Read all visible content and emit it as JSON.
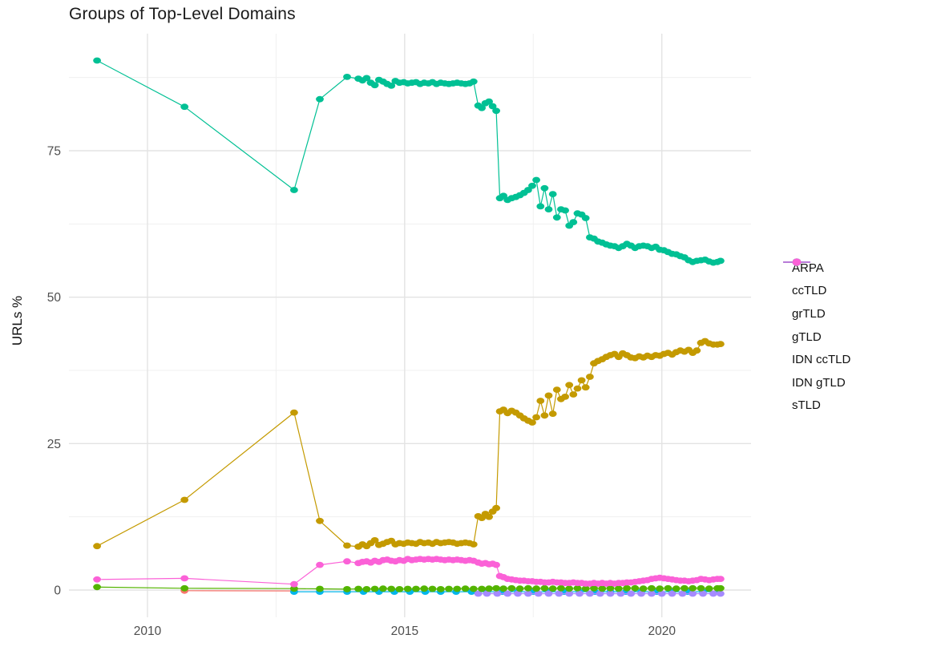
{
  "figure": {
    "title": "Groups of Top-Level Domains",
    "y_axis_label": "URLs %"
  },
  "chart_data": {
    "type": "line",
    "title": "Groups of Top-Level Domains",
    "xlabel": "",
    "ylabel": "URLs %",
    "x_ticks": [
      "2010",
      "2015",
      "2020"
    ],
    "x_tick_values": [
      2010,
      2015,
      2020
    ],
    "y_ticks": [
      "0",
      "25",
      "50",
      "75"
    ],
    "y_tick_values": [
      0,
      25,
      50,
      75
    ],
    "x_minor_gridlines": [
      2012.5,
      2017.5
    ],
    "y_minor_gridlines": [
      12.5,
      37.5,
      62.5,
      87.5
    ],
    "xlim": [
      2008.4,
      2021.75
    ],
    "ylim": [
      -4.7,
      95.2
    ],
    "grid": true,
    "legend_position": "right",
    "x_main": [
      2009.02,
      2010.72,
      2012.85,
      2013.35,
      2013.88,
      2014.1,
      2014.18,
      2014.26,
      2014.34,
      2014.42,
      2014.5,
      2014.58,
      2014.66,
      2014.74,
      2014.82,
      2014.9,
      2014.98,
      2015.06,
      2015.14,
      2015.22,
      2015.3,
      2015.38,
      2015.46,
      2015.54,
      2015.62,
      2015.7,
      2015.78,
      2015.86,
      2015.94,
      2016.02,
      2016.1,
      2016.18,
      2016.26,
      2016.34,
      2016.43,
      2016.5,
      2016.57,
      2016.64,
      2016.71,
      2016.78,
      2016.85,
      2016.92,
      2017.0,
      2017.08,
      2017.16,
      2017.24,
      2017.32,
      2017.4,
      2017.48,
      2017.56,
      2017.64,
      2017.72,
      2017.8,
      2017.88,
      2017.96,
      2018.04,
      2018.12,
      2018.2,
      2018.28,
      2018.36,
      2018.44,
      2018.52,
      2018.6,
      2018.68,
      2018.76,
      2018.84,
      2018.92,
      2019.0,
      2019.08,
      2019.16,
      2019.24,
      2019.32,
      2019.4,
      2019.48,
      2019.56,
      2019.64,
      2019.72,
      2019.8,
      2019.88,
      2019.96,
      2020.04,
      2020.12,
      2020.2,
      2020.28,
      2020.36,
      2020.44,
      2020.52,
      2020.6,
      2020.68,
      2020.76,
      2020.84,
      2020.92,
      2021.0,
      2021.08,
      2021.14
    ],
    "series": [
      {
        "name": "ARPA",
        "color": "#F8766D",
        "x": [
          2010.72,
          2012.85
        ],
        "y": [
          0.1,
          0.05
        ]
      },
      {
        "name": "ccTLD",
        "color": "#C49A00",
        "x_ref": "x_main",
        "y": [
          7.5,
          15.4,
          30.3,
          11.8,
          7.6,
          7.4,
          7.8,
          7.5,
          8.0,
          8.5,
          7.7,
          7.9,
          8.2,
          8.4,
          7.8,
          8.0,
          7.9,
          8.1,
          8.0,
          7.9,
          8.2,
          8.0,
          8.1,
          7.9,
          8.2,
          8.0,
          8.1,
          8.2,
          8.1,
          7.9,
          8.0,
          8.1,
          8.0,
          7.8,
          12.6,
          12.3,
          13.0,
          12.5,
          13.4,
          14.0,
          30.5,
          30.8,
          30.2,
          30.6,
          30.3,
          29.8,
          29.3,
          28.9,
          28.6,
          29.5,
          32.3,
          29.8,
          33.2,
          30.1,
          34.2,
          32.6,
          33.0,
          35.0,
          33.4,
          34.4,
          35.8,
          34.6,
          36.4,
          38.7,
          39.1,
          39.4,
          39.8,
          40.1,
          40.3,
          39.8,
          40.4,
          40.1,
          39.7,
          39.6,
          39.9,
          39.7,
          40.0,
          39.8,
          40.1,
          40.0,
          40.3,
          40.5,
          40.2,
          40.6,
          40.9,
          40.7,
          41.0,
          40.5,
          40.9,
          42.2,
          42.5,
          42.1,
          41.9,
          41.9,
          42.0
        ]
      },
      {
        "name": "grTLD",
        "color": "#53B400",
        "x": [
          2009.02,
          2010.72,
          2012.85,
          2013.35,
          2013.88,
          2014.1,
          2014.26,
          2014.42,
          2014.58,
          2014.74,
          2014.9,
          2015.06,
          2015.22,
          2015.38,
          2015.54,
          2015.7,
          2015.86,
          2016.02,
          2016.18,
          2016.34,
          2016.5,
          2016.64,
          2016.78,
          2016.92,
          2017.08,
          2017.24,
          2017.4,
          2017.56,
          2017.72,
          2017.88,
          2018.04,
          2018.2,
          2018.36,
          2018.52,
          2018.68,
          2018.84,
          2019.0,
          2019.16,
          2019.32,
          2019.48,
          2019.64,
          2019.8,
          2019.96,
          2020.12,
          2020.28,
          2020.44,
          2020.6,
          2020.76,
          2020.92,
          2021.08,
          2021.14
        ],
        "y": [
          0.5,
          0.3,
          0.25,
          0.2,
          0.15,
          0.2,
          0.15,
          0.2,
          0.25,
          0.2,
          0.15,
          0.2,
          0.2,
          0.25,
          0.2,
          0.15,
          0.2,
          0.2,
          0.25,
          0.2,
          0.2,
          0.25,
          0.3,
          0.25,
          0.3,
          0.25,
          0.3,
          0.25,
          0.3,
          0.25,
          0.3,
          0.25,
          0.3,
          0.25,
          0.3,
          0.25,
          0.3,
          0.25,
          0.3,
          0.3,
          0.25,
          0.3,
          0.25,
          0.3,
          0.25,
          0.3,
          0.3,
          0.3,
          0.25,
          0.3,
          0.3
        ]
      },
      {
        "name": "gTLD",
        "color": "#00C094",
        "x_ref": "x_main",
        "y": [
          90.4,
          82.5,
          68.3,
          83.8,
          87.6,
          87.3,
          87.0,
          87.4,
          86.6,
          86.2,
          87.1,
          86.8,
          86.4,
          86.1,
          86.9,
          86.6,
          86.7,
          86.5,
          86.6,
          86.7,
          86.4,
          86.6,
          86.5,
          86.7,
          86.4,
          86.6,
          86.5,
          86.4,
          86.5,
          86.6,
          86.5,
          86.4,
          86.5,
          86.8,
          82.7,
          82.3,
          83.1,
          83.4,
          82.6,
          81.8,
          66.9,
          67.3,
          66.6,
          66.9,
          67.1,
          67.4,
          67.8,
          68.3,
          69.0,
          70.0,
          65.5,
          68.6,
          65.0,
          67.6,
          63.6,
          65.0,
          64.8,
          62.2,
          62.8,
          64.3,
          64.1,
          63.5,
          60.2,
          60.0,
          59.5,
          59.3,
          59.0,
          58.8,
          58.7,
          58.4,
          58.7,
          59.1,
          58.8,
          58.4,
          58.7,
          58.8,
          58.7,
          58.4,
          58.6,
          58.1,
          58.0,
          57.7,
          57.4,
          57.3,
          57.0,
          56.8,
          56.3,
          56.0,
          56.2,
          56.3,
          56.4,
          56.1,
          55.9,
          56.0,
          56.2
        ]
      },
      {
        "name": "IDN ccTLD",
        "color": "#00B6EB",
        "x": [
          2012.85,
          2013.35,
          2013.88,
          2014.2,
          2014.5,
          2014.8,
          2015.1,
          2015.4,
          2015.7,
          2016.0,
          2016.3,
          2016.6,
          2016.9,
          2017.2,
          2017.5,
          2017.8,
          2018.1,
          2018.4,
          2018.7,
          2019.0,
          2019.3,
          2019.6,
          2019.9,
          2020.2,
          2020.5,
          2020.8,
          2021.1
        ],
        "y": [
          0.05,
          0.05,
          0.05,
          0.05,
          0.05,
          0.05,
          0.05,
          0.05,
          0.05,
          0.05,
          0.05,
          0.05,
          0.05,
          0.05,
          0.05,
          0.05,
          0.05,
          0.05,
          0.05,
          0.05,
          0.05,
          0.05,
          0.05,
          0.05,
          0.05,
          0.05,
          0.05
        ]
      },
      {
        "name": "IDN gTLD",
        "color": "#A58AFF",
        "x": [
          2016.43,
          2016.6,
          2016.8,
          2017.0,
          2017.2,
          2017.4,
          2017.6,
          2017.8,
          2018.0,
          2018.2,
          2018.4,
          2018.6,
          2018.8,
          2019.0,
          2019.2,
          2019.4,
          2019.6,
          2019.8,
          2020.0,
          2020.2,
          2020.4,
          2020.6,
          2020.8,
          2021.0,
          2021.14
        ],
        "y": [
          0.0,
          0.0,
          0.0,
          0.0,
          0.0,
          0.0,
          0.0,
          0.0,
          0.0,
          0.0,
          0.0,
          0.0,
          0.0,
          0.0,
          0.0,
          0.0,
          0.0,
          0.0,
          0.0,
          0.0,
          0.0,
          0.0,
          0.0,
          0.0,
          0.0
        ]
      },
      {
        "name": "sTLD",
        "color": "#FB61D7",
        "x_ref": "x_main",
        "y": [
          1.8,
          2.0,
          1.0,
          4.3,
          4.9,
          4.6,
          4.8,
          4.9,
          4.7,
          5.0,
          4.8,
          5.1,
          5.2,
          5.0,
          4.9,
          5.1,
          5.0,
          5.3,
          5.1,
          5.2,
          5.3,
          5.2,
          5.3,
          5.2,
          5.3,
          5.2,
          5.1,
          5.2,
          5.1,
          5.2,
          5.1,
          5.0,
          5.1,
          5.0,
          4.7,
          4.5,
          4.6,
          4.4,
          4.5,
          4.3,
          2.4,
          2.2,
          1.9,
          1.8,
          1.7,
          1.6,
          1.6,
          1.5,
          1.5,
          1.4,
          1.4,
          1.3,
          1.3,
          1.4,
          1.3,
          1.3,
          1.2,
          1.2,
          1.3,
          1.2,
          1.2,
          1.1,
          1.1,
          1.2,
          1.1,
          1.2,
          1.1,
          1.2,
          1.1,
          1.2,
          1.2,
          1.3,
          1.3,
          1.4,
          1.5,
          1.6,
          1.7,
          1.9,
          2.0,
          2.1,
          2.0,
          1.9,
          1.8,
          1.7,
          1.6,
          1.6,
          1.5,
          1.6,
          1.7,
          1.9,
          1.8,
          1.7,
          1.8,
          1.9,
          1.9
        ]
      }
    ]
  }
}
